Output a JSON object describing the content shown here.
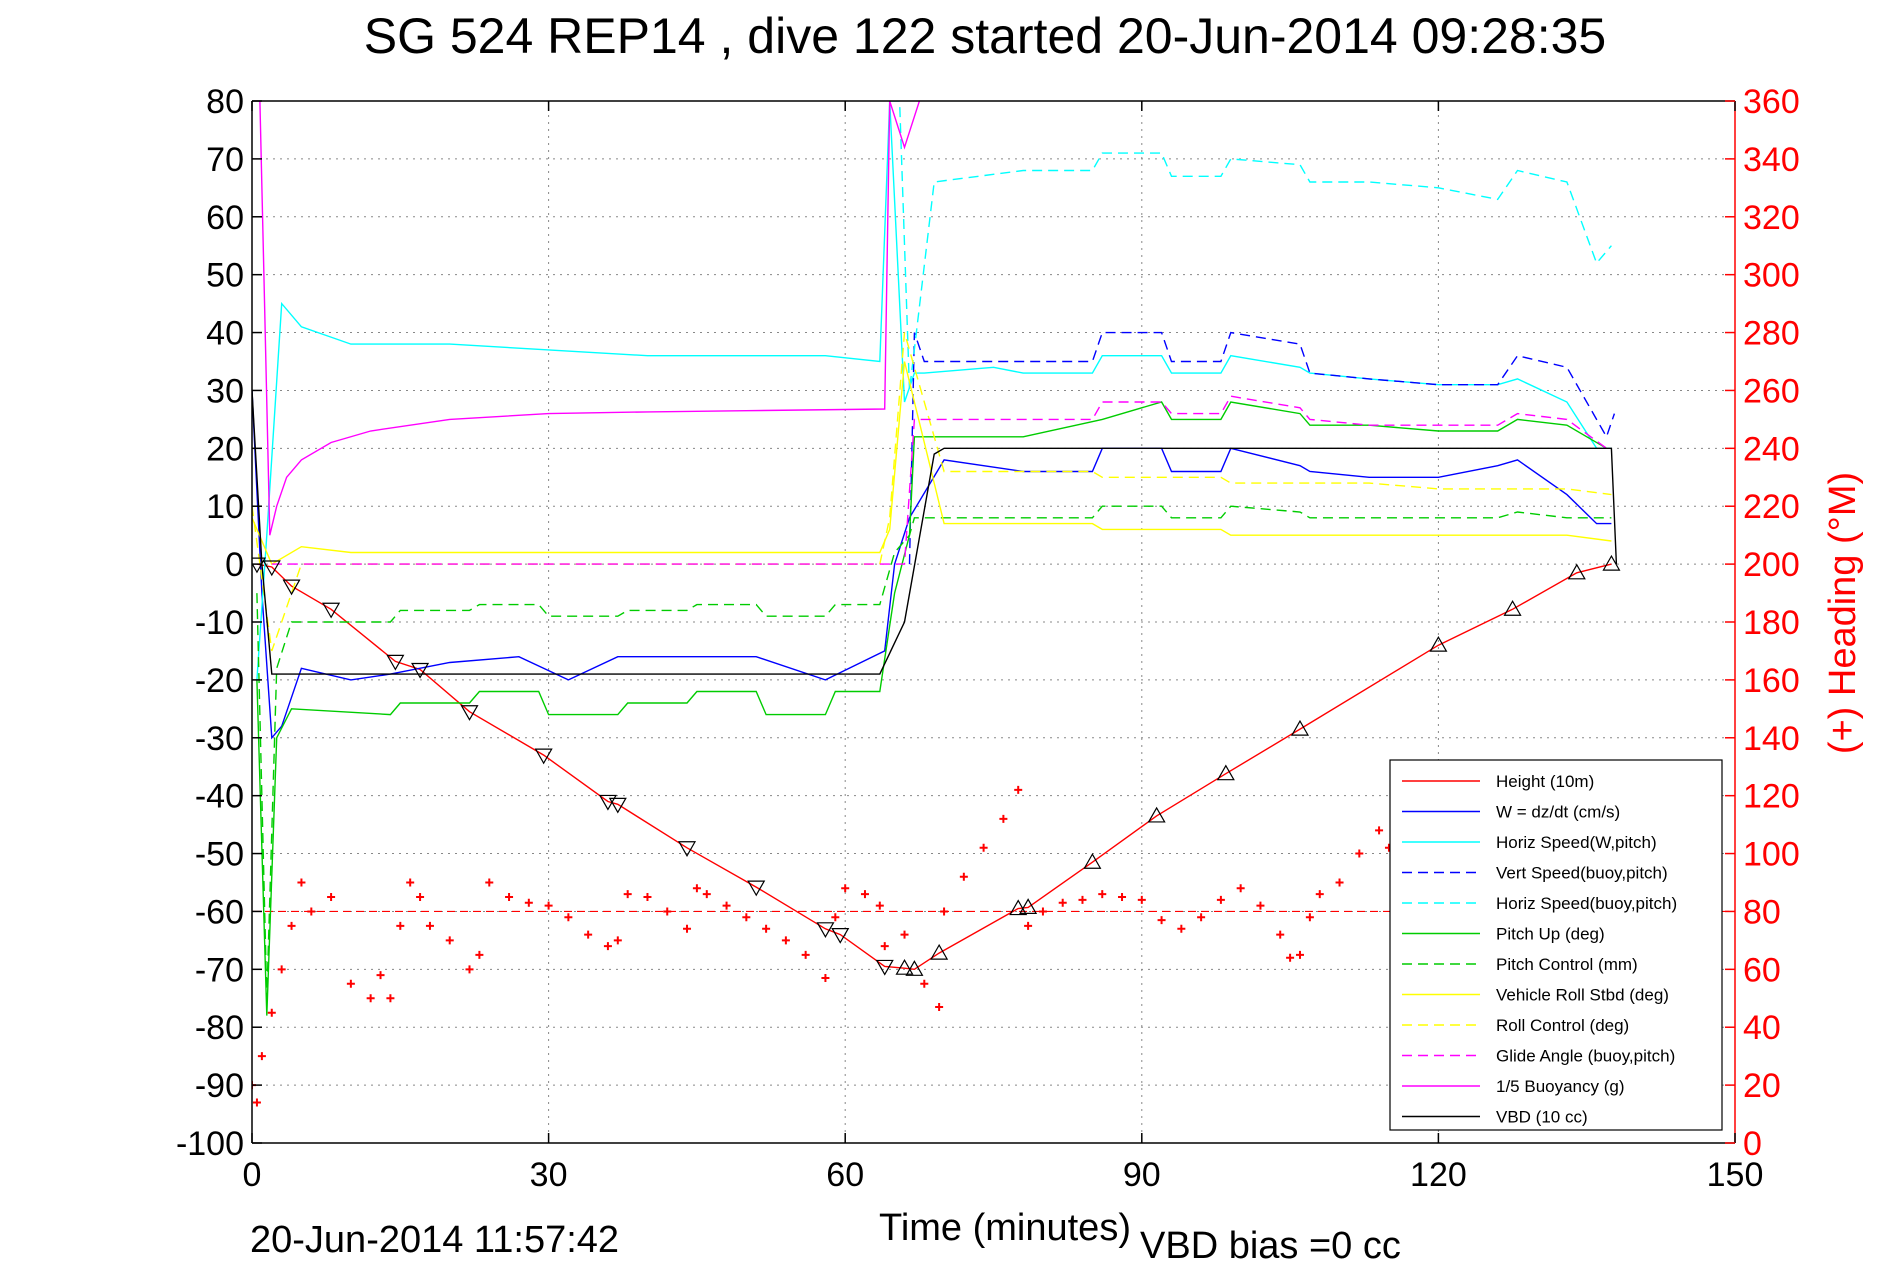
{
  "chart_data": {
    "type": "line",
    "title": "SG 524   REP14  , dive 122 started 20-Jun-2014 09:28:35",
    "xlabel": "Time (minutes)",
    "ylabel_right": "(+) Heading (°M)",
    "footer_left": "20-Jun-2014 11:57:42",
    "footer_right": "VBD bias =0 cc",
    "xlim": [
      0,
      150
    ],
    "ylim_left": [
      -100,
      80
    ],
    "ylim_right": [
      0,
      360
    ],
    "xticks": [
      0,
      30,
      60,
      90,
      120,
      150
    ],
    "yticks_left": [
      80,
      70,
      60,
      50,
      40,
      30,
      20,
      10,
      0,
      -10,
      -20,
      -30,
      -40,
      -50,
      -60,
      -70,
      -80,
      -90,
      -100
    ],
    "yticks_right": [
      360,
      340,
      320,
      300,
      280,
      260,
      240,
      220,
      200,
      180,
      160,
      140,
      120,
      100,
      80,
      60,
      40,
      20,
      0
    ],
    "grid": true,
    "legend_position": "bottom-right",
    "colors": {
      "right_axis": "#ff0000",
      "axes": "#000000",
      "grid": "#888888"
    },
    "series": [
      {
        "name": "Height (10m)",
        "color": "#ff0000",
        "style": "solid",
        "x": [
          0.5,
          2,
          4,
          8,
          14.5,
          17,
          22,
          29.5,
          36,
          37,
          44,
          51,
          58,
          59.5,
          64,
          66,
          67,
          69.5,
          77.5,
          78.5,
          85,
          91.5,
          98.5,
          106,
          120,
          127.5,
          134,
          137.5
        ],
        "y": [
          0,
          -0.5,
          -3.8,
          -7.8,
          -16.8,
          -18.2,
          -25.5,
          -33,
          -41,
          -41.5,
          -49,
          -55.8,
          -63,
          -64,
          -69.5,
          -69.8,
          -70,
          -67.2,
          -59.5,
          -59.3,
          -51.5,
          -43.5,
          -36.2,
          -28.5,
          -14,
          -7.8,
          -1.5,
          0
        ]
      },
      {
        "name": "W = dz/dt (cm/s)",
        "color": "#0000ff",
        "style": "solid",
        "x": [
          0,
          1,
          2,
          3,
          5,
          10,
          14,
          20,
          27,
          32,
          37,
          44,
          51,
          58,
          64,
          65,
          66.5,
          70,
          78,
          85,
          86,
          92,
          93,
          98,
          99,
          106,
          107,
          113,
          120,
          126,
          128,
          133,
          136,
          137.5
        ],
        "y": [
          30,
          -5,
          -30,
          -28,
          -18,
          -20,
          -19,
          -17,
          -16,
          -20,
          -16,
          -16,
          -16,
          -20,
          -15,
          0,
          8,
          18,
          16,
          16,
          20,
          20,
          16,
          16,
          20,
          17,
          16,
          15,
          15,
          17,
          18,
          12,
          7,
          7
        ]
      },
      {
        "name": "Horiz Speed(W,pitch)",
        "color": "#00ffff",
        "style": "solid",
        "x": [
          0.5,
          1.5,
          3,
          5,
          10,
          20,
          30,
          40,
          50,
          58,
          63.5,
          64.5,
          66,
          67,
          68,
          75,
          78,
          85,
          86,
          92,
          93,
          98,
          99,
          106,
          107,
          113,
          120,
          126,
          128,
          133,
          136,
          137.5
        ],
        "y": [
          -20,
          5,
          45,
          41,
          38,
          38,
          37,
          36,
          36,
          36,
          35,
          80,
          28,
          33,
          33,
          34,
          33,
          33,
          36,
          36,
          33,
          33,
          36,
          34,
          33,
          32,
          31,
          31,
          32,
          28,
          20,
          20
        ]
      },
      {
        "name": "Vert Speed(buoy,pitch)",
        "color": "#0000ff",
        "style": "dashed",
        "x": [
          66.5,
          67,
          68,
          78,
          85,
          86,
          92,
          93,
          98,
          99,
          106,
          107,
          113,
          120,
          126,
          128,
          133,
          137,
          137.8
        ],
        "y": [
          0,
          40,
          35,
          35,
          35,
          40,
          40,
          35,
          35,
          40,
          38,
          33,
          32,
          31,
          31,
          36,
          34,
          22,
          26
        ]
      },
      {
        "name": "Horiz Speed(buoy,pitch)",
        "color": "#00ffff",
        "style": "dashed",
        "x": [
          64.5,
          65.5,
          66.5,
          69,
          78,
          85,
          86,
          92,
          93,
          98,
          99,
          106,
          107,
          113,
          120,
          126,
          128,
          133,
          136,
          137.5
        ],
        "y": [
          80,
          80,
          30,
          66,
          68,
          68,
          71,
          71,
          67,
          67,
          70,
          69,
          66,
          66,
          65,
          63,
          68,
          66,
          52,
          55
        ]
      },
      {
        "name": "Pitch Up (deg)",
        "color": "#00cc00",
        "style": "solid",
        "x": [
          0.5,
          1.5,
          2.5,
          4,
          14,
          15,
          22,
          23,
          29,
          30,
          37,
          38,
          44,
          45,
          51,
          52,
          58,
          59,
          63.5,
          65,
          66.5,
          67,
          68,
          78,
          86,
          92,
          93,
          98,
          99,
          106,
          107,
          113,
          120,
          126,
          128,
          133,
          137
        ],
        "y": [
          -20,
          -78,
          -30,
          -25,
          -26,
          -24,
          -24,
          -22,
          -22,
          -26,
          -26,
          -24,
          -24,
          -22,
          -22,
          -26,
          -26,
          -22,
          -22,
          -5,
          5,
          22,
          22,
          22,
          25,
          28,
          25,
          25,
          28,
          26,
          24,
          24,
          23,
          23,
          25,
          24,
          20
        ]
      },
      {
        "name": "Pitch Control (mm)",
        "color": "#00cc00",
        "style": "dashed",
        "x": [
          0.5,
          1.5,
          2.5,
          4,
          14,
          15,
          22,
          23,
          29,
          30,
          37,
          38,
          44,
          45,
          51,
          52,
          58,
          59,
          63.5,
          65,
          66.5,
          67,
          68,
          78,
          85,
          86,
          92,
          93,
          98,
          99,
          106,
          107,
          113,
          120,
          126,
          128,
          133,
          137.5
        ],
        "y": [
          -5,
          -75,
          -18,
          -10,
          -10,
          -8,
          -8,
          -7,
          -7,
          -9,
          -9,
          -8,
          -8,
          -7,
          -7,
          -9,
          -9,
          -7,
          -7,
          2,
          5,
          8,
          8,
          8,
          8,
          10,
          10,
          8,
          8,
          10,
          9,
          8,
          8,
          8,
          8,
          9,
          8,
          8
        ]
      },
      {
        "name": "Vehicle Roll Stbd (deg)",
        "color": "#ffff00",
        "style": "solid",
        "x": [
          0,
          2,
          5,
          10,
          20,
          30,
          40,
          50,
          60,
          63.5,
          64.5,
          66,
          70,
          78,
          85,
          86,
          92,
          93,
          98,
          99,
          106,
          107,
          113,
          120,
          126,
          128,
          133,
          137.5
        ],
        "y": [
          8,
          0,
          3,
          2,
          2,
          2,
          2,
          2,
          2,
          2,
          6,
          35,
          7,
          7,
          7,
          6,
          6,
          6,
          6,
          5,
          5,
          5,
          5,
          5,
          5,
          5,
          5,
          4
        ]
      },
      {
        "name": "Roll Control (deg)",
        "color": "#ffff00",
        "style": "dashed",
        "x": [
          0,
          2,
          5,
          10,
          20,
          30,
          40,
          50,
          60,
          63.5,
          64.5,
          66,
          70,
          78,
          85,
          86,
          92,
          93,
          98,
          99,
          106,
          107,
          113,
          120,
          126,
          128,
          133,
          137.5
        ],
        "y": [
          10,
          -15,
          0,
          0,
          0,
          0,
          0,
          0,
          0,
          0,
          8,
          40,
          16,
          16,
          16,
          15,
          15,
          15,
          15,
          14,
          14,
          14,
          14,
          13,
          13,
          13,
          13,
          12
        ]
      },
      {
        "name": "Glide Angle (buoy,pitch)",
        "color": "#ff00ff",
        "style": "dashed",
        "x": [
          2,
          20,
          40,
          60,
          66,
          67,
          68,
          78,
          85,
          86,
          92,
          93,
          98,
          99,
          106,
          107,
          113,
          120,
          126,
          128,
          133,
          137
        ],
        "y": [
          0,
          0,
          0,
          0,
          0,
          25,
          25,
          25,
          25,
          28,
          28,
          26,
          26,
          29,
          27,
          25,
          24,
          24,
          24,
          26,
          25,
          20
        ]
      },
      {
        "name": "1/5 Buoyancy (g)",
        "color": "#ff00ff",
        "style": "solid",
        "x": [
          0.8,
          1.2,
          1.8,
          2.5,
          3.5,
          5,
          8,
          12,
          20,
          30,
          40,
          50,
          60,
          64,
          64.5,
          66,
          67.5
        ],
        "y": [
          80,
          50,
          5,
          10,
          15,
          18,
          21,
          23,
          25,
          26,
          26.3,
          26.5,
          26.7,
          26.8,
          80,
          72,
          80
        ]
      },
      {
        "name": "VBD (10 cc)",
        "color": "#000000",
        "style": "solid",
        "x": [
          0,
          1,
          2,
          63.5,
          66,
          69,
          70,
          137.5,
          138
        ],
        "y": [
          30,
          0,
          -19,
          -19,
          -10,
          19,
          20,
          20,
          0
        ]
      }
    ],
    "heading_series": {
      "name": "Heading",
      "color": "#ff0000",
      "marker": "+",
      "reference_value": 80,
      "x": [
        0,
        0.5,
        1,
        2,
        3,
        4,
        5,
        6,
        8,
        10,
        12,
        13,
        14,
        15,
        16,
        17,
        18,
        20,
        22,
        23,
        24,
        26,
        28,
        30,
        32,
        34,
        36,
        37,
        38,
        40,
        42,
        44,
        45,
        46,
        48,
        50,
        52,
        54,
        56,
        58,
        59,
        60,
        62,
        63.5,
        64,
        66,
        68,
        69.5,
        70,
        72,
        74,
        76,
        77.5,
        78.5,
        80,
        82,
        84,
        86,
        88,
        90,
        92,
        94,
        96,
        98,
        100,
        102,
        104,
        105,
        106,
        107,
        108,
        110,
        112,
        114,
        115,
        116
      ],
      "y": [
        20,
        14,
        30,
        45,
        60,
        75,
        90,
        80,
        85,
        55,
        50,
        58,
        50,
        75,
        90,
        85,
        75,
        70,
        60,
        65,
        90,
        85,
        83,
        82,
        78,
        72,
        68,
        70,
        86,
        85,
        80,
        74,
        88,
        86,
        82,
        78,
        74,
        70,
        65,
        57,
        78,
        88,
        86,
        82,
        68,
        72,
        55,
        47,
        80,
        92,
        102,
        112,
        122,
        75,
        80,
        83,
        84,
        86,
        85,
        84,
        77,
        74,
        78,
        84,
        88,
        82,
        72,
        64,
        65,
        78,
        86,
        90,
        100,
        108,
        102,
        110
      ]
    }
  }
}
